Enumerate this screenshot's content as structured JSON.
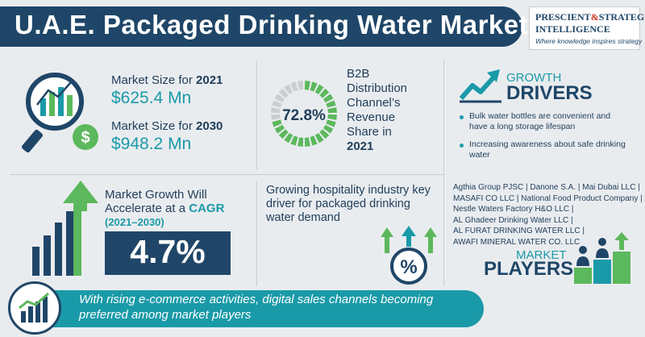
{
  "title": "U.A.E. Packaged Drinking Water Market",
  "logo": {
    "line1_a": "PRESCIENT",
    "amp": "&",
    "line1_b": "STRATEGIC",
    "line2": "INTELLIGENCE",
    "tagline": "Where knowledge inspires strategy"
  },
  "market_size": {
    "label_2021_prefix": "Market Size for ",
    "year_2021": "2021",
    "value_2021": "$625.4 Mn",
    "label_2030_prefix": "Market Size for ",
    "year_2030": "2030",
    "value_2030": "$948.2 Mn"
  },
  "b2b": {
    "percent": "72.8%",
    "percent_value": 72.8,
    "line1": "B2B",
    "line2": "Distribution",
    "line3": "Channel’s",
    "line4": "Revenue",
    "line5": "Share in",
    "year": "2021"
  },
  "growth_drivers": {
    "growth_word": "GROWTH",
    "drivers_word": "DRIVERS",
    "bullets": [
      "Bulk water bottles are convenient and have a long storage lifespan",
      "Increasing awareness about safe drinking water"
    ]
  },
  "market_growth": {
    "line1": "Market Growth Will",
    "line2_prefix": "Accelerate at a ",
    "cagr_word": "CAGR",
    "years": "(2021–2030)",
    "cagr_value": "4.7%"
  },
  "hospitality": {
    "text": "Growing hospitality industry key driver for packaged drinking water demand"
  },
  "players": {
    "lines": [
      "Agthia Group PJSC | Danone S.A. | Mai Dubai LLC |",
      "MASAFI CO LLC | National Food Product Company |",
      "Nestle Waters Factory H&O LLC |",
      "AL Ghadeer Drinking Water LLC |",
      "AL FURAT DRINKING WATER LLC |",
      "AWAFI MINERAL WATER CO. LLC"
    ],
    "market_word": "MARKET",
    "players_word": "PLAYERS"
  },
  "footer": {
    "text": "With rising e-commerce activities, digital sales channels becoming preferred among market players"
  },
  "colors": {
    "navy": "#1f4668",
    "teal": "#1a9aa8",
    "green": "#5cb85c",
    "background": "#e9ecef"
  },
  "icons": {
    "market_size": "magnifier-chart-dollar-icon",
    "donut": "donut-chart-icon",
    "growth": "trend-up-arrow-icon",
    "cagr": "rising-bars-arrow-icon",
    "hospitality": "percent-arrows-icon",
    "players": "people-podium-icon",
    "footer": "bar-chart-trend-icon"
  }
}
